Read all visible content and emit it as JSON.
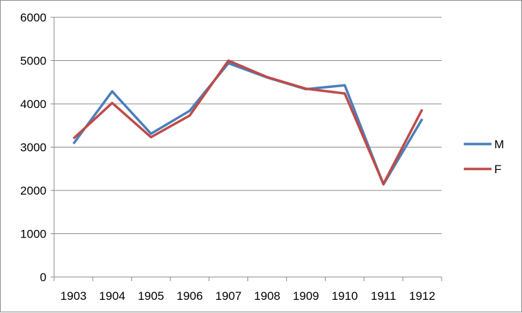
{
  "chart_data": {
    "type": "line",
    "title": "",
    "xlabel": "",
    "ylabel": "",
    "categories": [
      "1903",
      "1904",
      "1905",
      "1906",
      "1907",
      "1908",
      "1909",
      "1910",
      "1911",
      "1912"
    ],
    "ylim": [
      0,
      6000
    ],
    "yticks": [
      "0",
      "1000",
      "2000",
      "3000",
      "4000",
      "5000",
      "6000"
    ],
    "grid": "horizontal",
    "legend_position": "right",
    "series": [
      {
        "name": "M",
        "color": "#4a7ebb",
        "values": [
          3080,
          4290,
          3310,
          3840,
          4940,
          4610,
          4340,
          4430,
          2140,
          3650
        ]
      },
      {
        "name": "F",
        "color": "#be4b48",
        "values": [
          3200,
          4020,
          3230,
          3730,
          5000,
          4620,
          4350,
          4240,
          2150,
          3870
        ]
      }
    ]
  }
}
